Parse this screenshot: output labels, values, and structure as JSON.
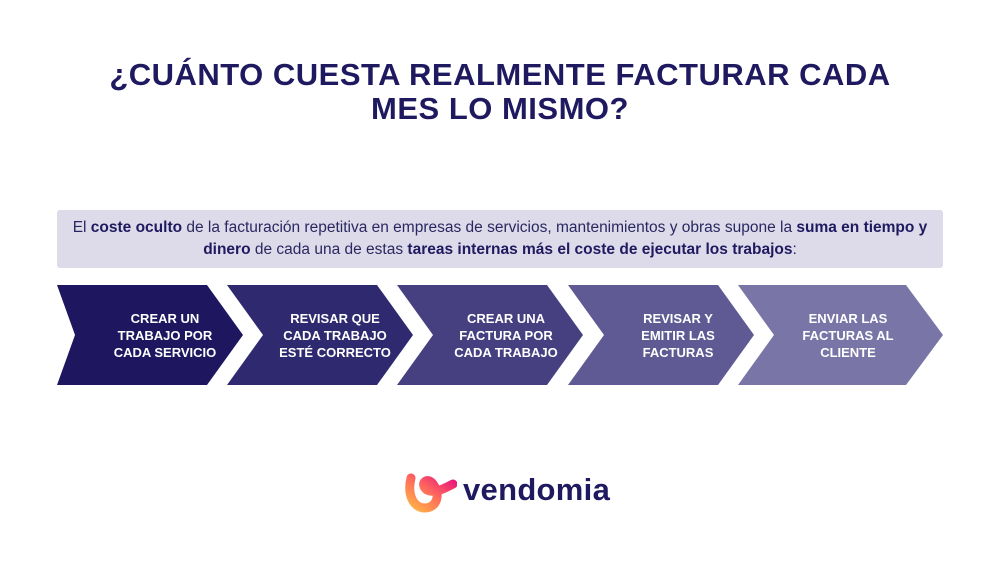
{
  "title_line1": "¿CUÁNTO CUESTA REALMENTE FACTURAR CADA",
  "title_line2": "MES LO MISMO?",
  "intro": {
    "t1": "El ",
    "b1": "coste oculto",
    "t2": " de la facturación repetitiva en empresas de servicios, mantenimientos y obras supone la ",
    "b2": "suma en tiempo y dinero",
    "t3": " de cada una de estas ",
    "b3": "tareas internas más el coste de ejecutar los trabajos",
    "t4": ":"
  },
  "steps": [
    {
      "l1": "CREAR UN",
      "l2": "TRABAJO POR",
      "l3": "CADA SERVICIO",
      "color": "#1e1760"
    },
    {
      "l1": "REVISAR QUE",
      "l2": "CADA TRABAJO",
      "l3": "ESTÉ CORRECTO",
      "color": "#2f2a6f"
    },
    {
      "l1": "CREAR UNA",
      "l2": "FACTURA POR",
      "l3": "CADA TRABAJO",
      "color": "#474080"
    },
    {
      "l1": "REVISAR Y",
      "l2": "EMITIR LAS",
      "l3": "FACTURAS",
      "color": "#5f5a93"
    },
    {
      "l1": "ENVIAR LAS",
      "l2": "FACTURAS AL",
      "l3": "CLIENTE",
      "color": "#7a75a7"
    }
  ],
  "logo": {
    "text": "vendomia"
  }
}
